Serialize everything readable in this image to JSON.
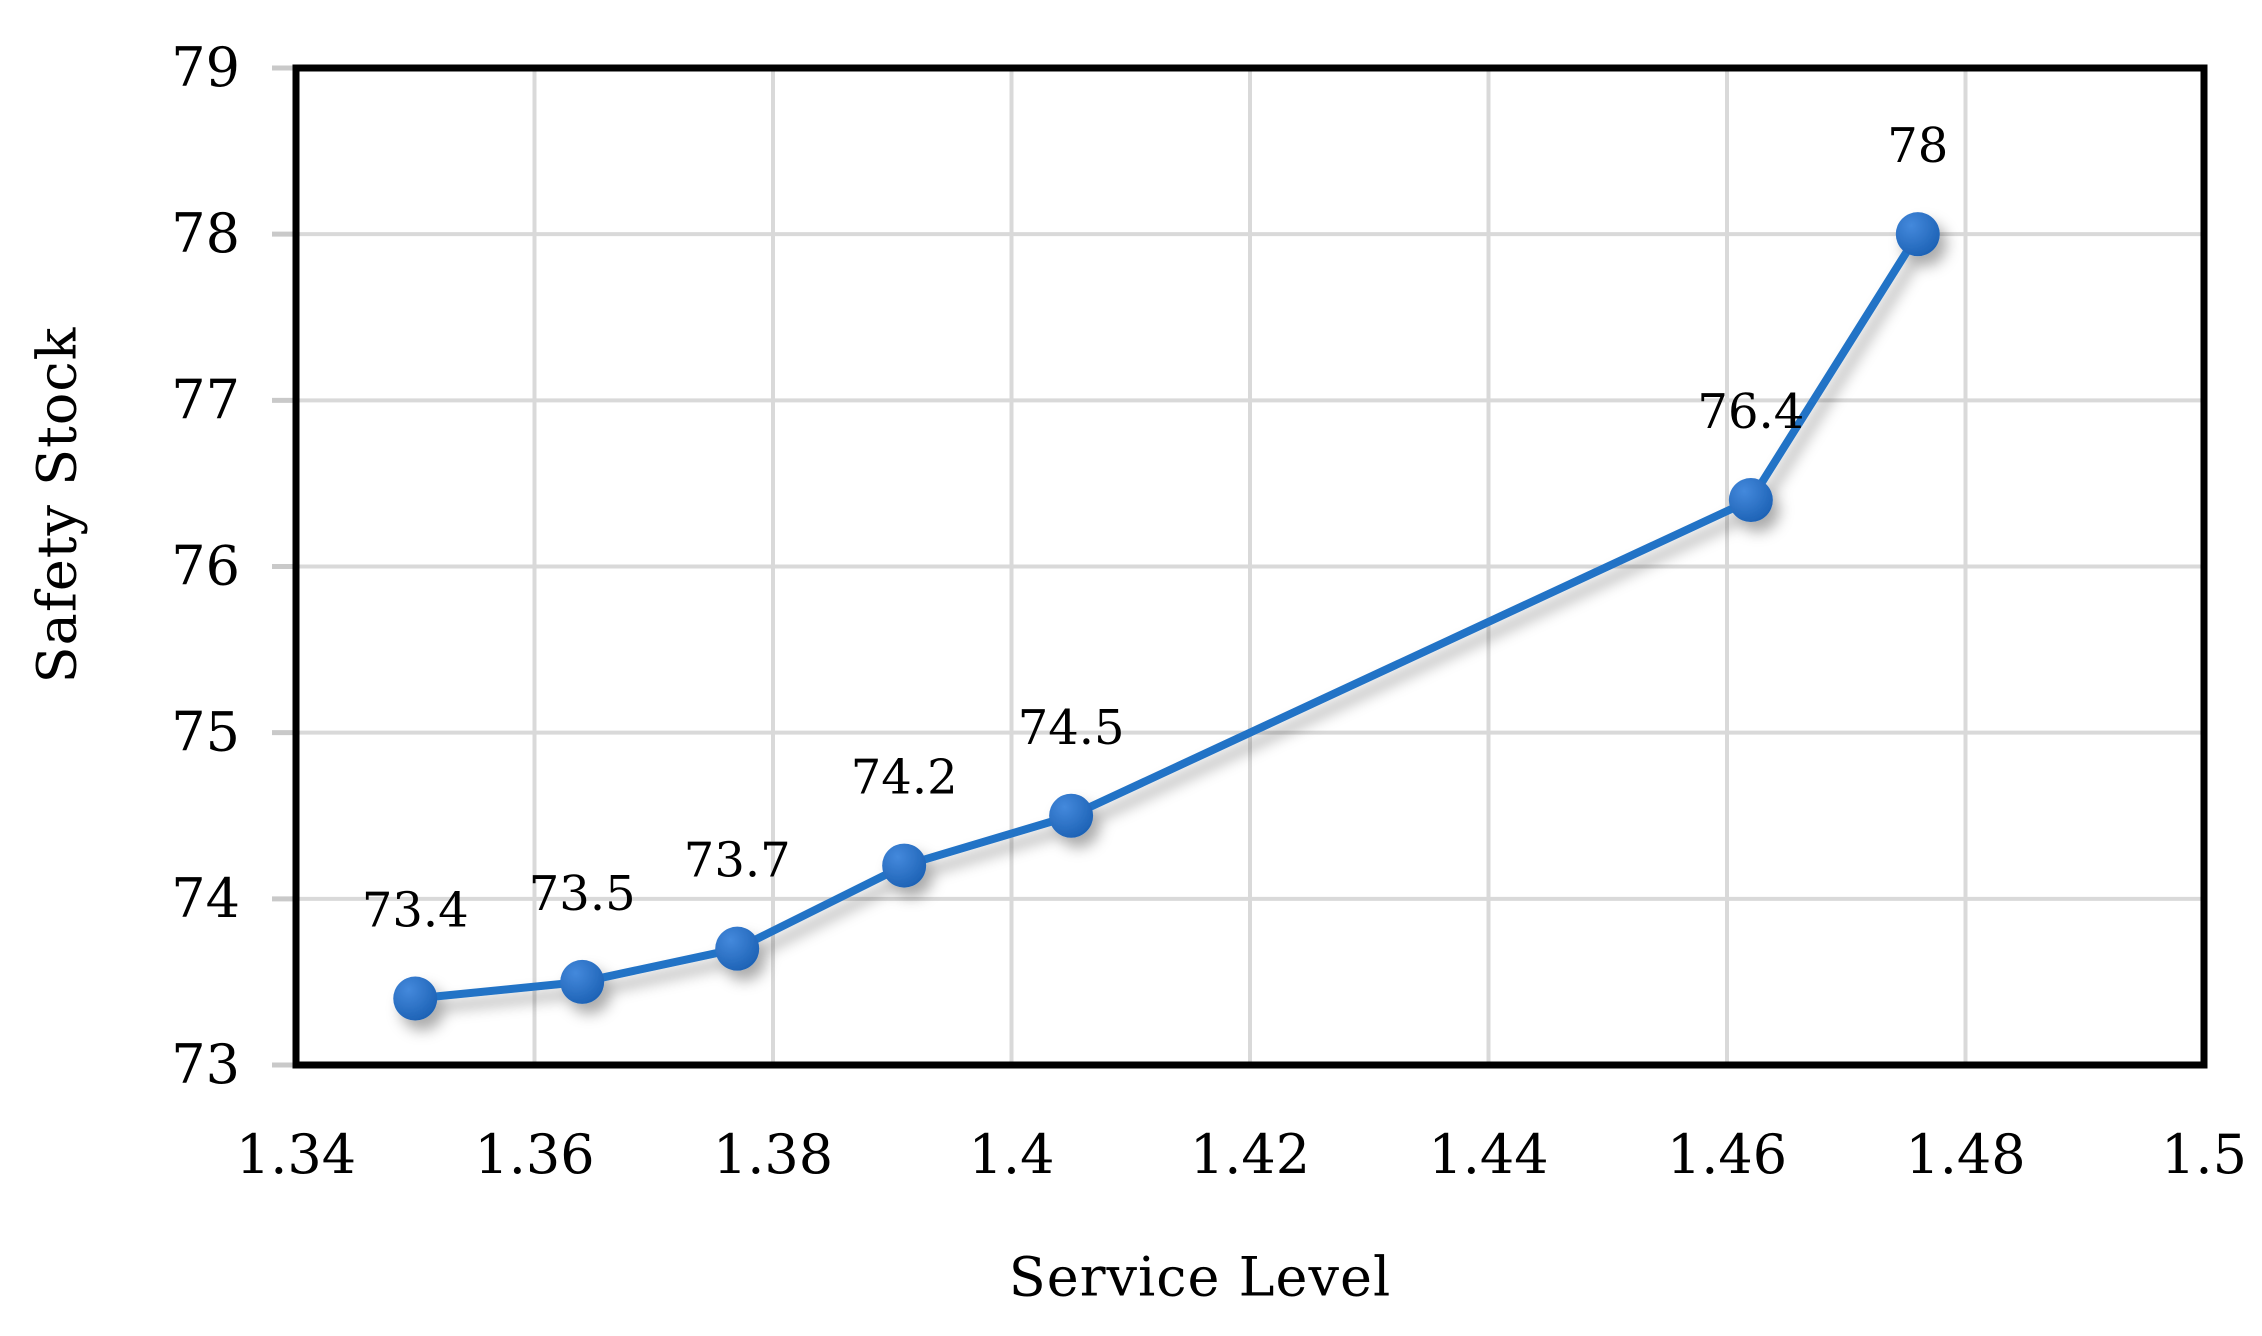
{
  "figure": {
    "background": "#FFFFFF",
    "x_axis_title": "Service Level",
    "y_axis_title": "Safety Stock"
  },
  "chart_data": {
    "type": "line",
    "title": "",
    "xlabel": "Service Level",
    "ylabel": "Safety Stock",
    "xlim": [
      1.34,
      1.5
    ],
    "ylim": [
      73,
      79
    ],
    "xticks": [
      "1.34",
      "1.36",
      "1.38",
      "1.4",
      "1.42",
      "1.44",
      "1.46",
      "1.48",
      "1.5"
    ],
    "xtick_values": [
      1.34,
      1.36,
      1.38,
      1.4,
      1.42,
      1.44,
      1.46,
      1.48,
      1.5
    ],
    "yticks": [
      "73",
      "74",
      "75",
      "76",
      "77",
      "78",
      "79"
    ],
    "ytick_values": [
      73,
      74,
      75,
      76,
      77,
      78,
      79
    ],
    "grid": true,
    "legend": "none",
    "series": [
      {
        "name": "Safety Stock",
        "x": [
          1.35,
          1.364,
          1.377,
          1.391,
          1.405,
          1.462,
          1.476
        ],
        "y": [
          73.4,
          73.5,
          73.7,
          74.2,
          74.5,
          76.4,
          78
        ],
        "point_labels": [
          "73.4",
          "73.5",
          "73.7",
          "74.2",
          "74.5",
          "76.4",
          "78"
        ]
      }
    ],
    "colors": {
      "line": "#2173C6",
      "marker_light": "#4489DC",
      "marker_dark": "#1A5FB2",
      "gridline": "#D9D9D9",
      "tick": "#C9C9C9",
      "border": "#000000",
      "text": "#000000"
    }
  }
}
